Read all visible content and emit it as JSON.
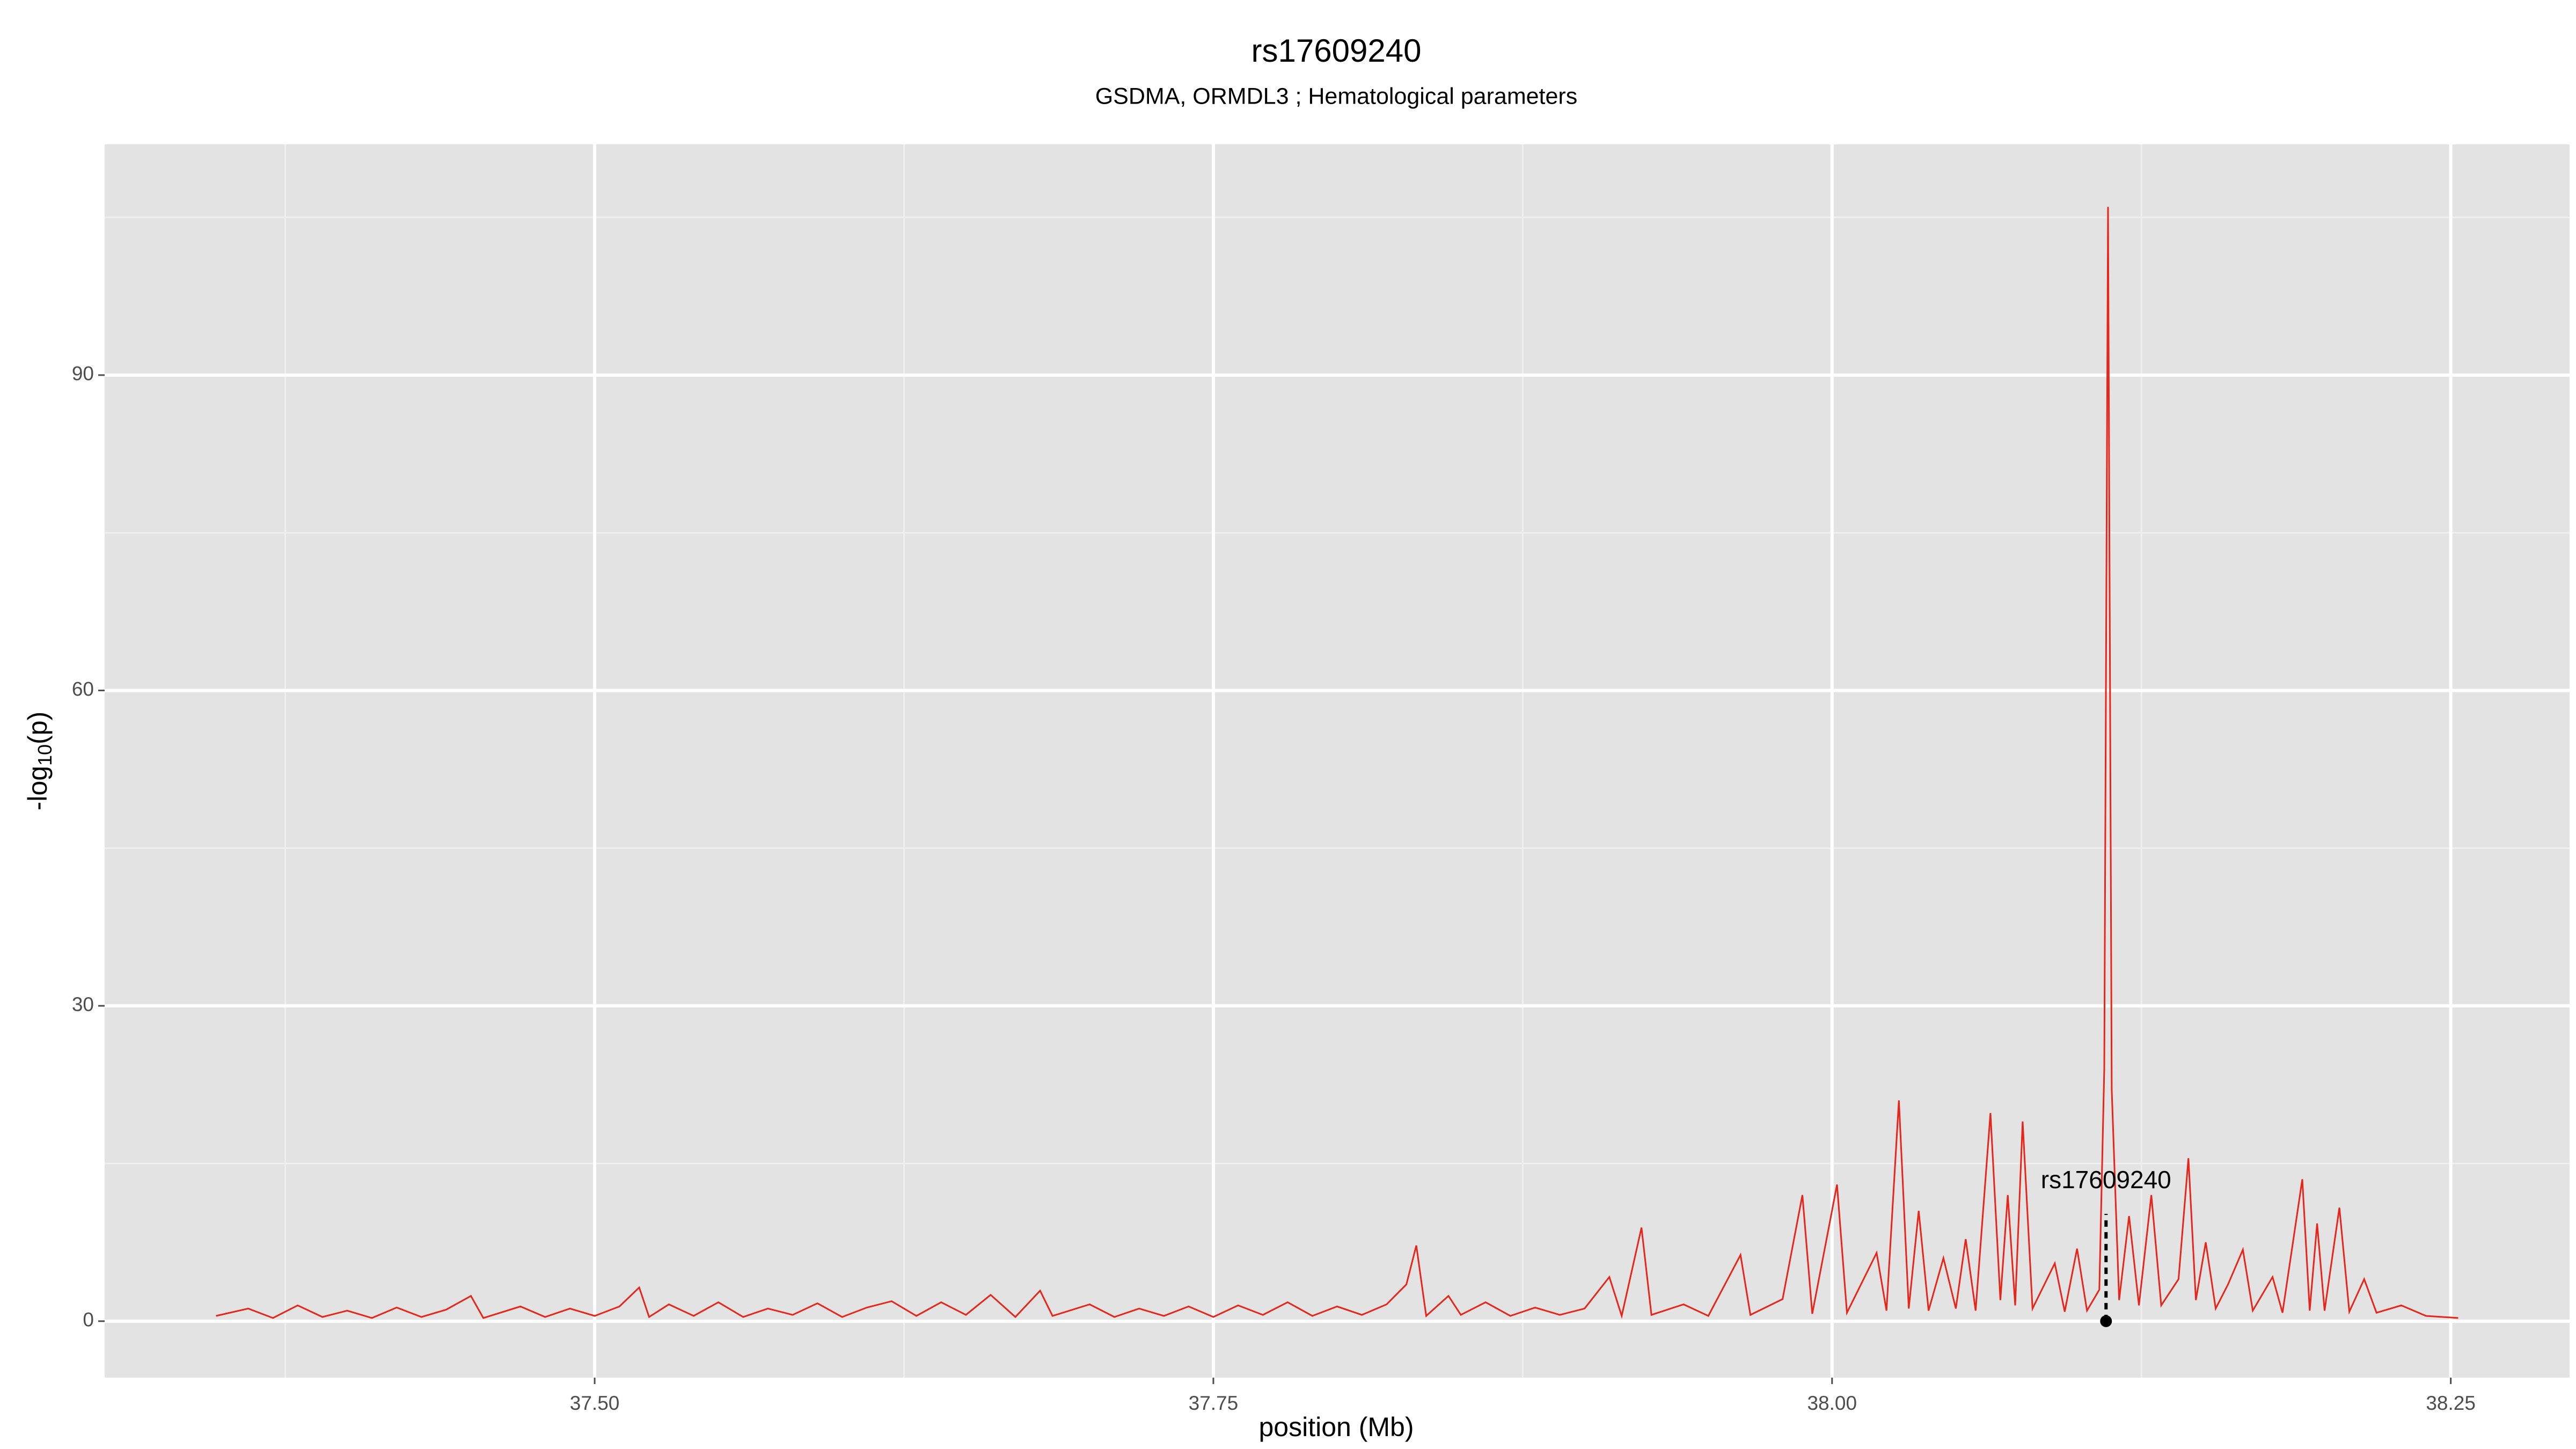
{
  "chart_data": {
    "type": "line",
    "title": "rs17609240",
    "subtitle": "GSDMA, ORMDL3 ; Hematological parameters",
    "x_label": "position (Mb)",
    "y_label": {
      "prefix": "-log",
      "sub": "10",
      "suffix": "(p)"
    },
    "xlim": [
      37.302,
      38.298
    ],
    "ylim": [
      -5.37,
      111.95
    ],
    "xticks": [
      {
        "value": 37.5,
        "label": "37.50"
      },
      {
        "value": 37.75,
        "label": "37.75"
      },
      {
        "value": 38.0,
        "label": "38.00"
      },
      {
        "value": 38.25,
        "label": "38.25"
      }
    ],
    "yticks": [
      0,
      30,
      60,
      90
    ],
    "grid": true,
    "series": [
      {
        "color": "#e8251b",
        "x": [
          37.347,
          37.36,
          37.37,
          37.38,
          37.39,
          37.4,
          37.41,
          37.42,
          37.43,
          37.44,
          37.45,
          37.455,
          37.47,
          37.48,
          37.49,
          37.5,
          37.51,
          37.518,
          37.522,
          37.53,
          37.54,
          37.55,
          37.56,
          37.57,
          37.58,
          37.59,
          37.6,
          37.61,
          37.62,
          37.63,
          37.64,
          37.65,
          37.66,
          37.67,
          37.68,
          37.685,
          37.7,
          37.71,
          37.72,
          37.73,
          37.74,
          37.75,
          37.76,
          37.77,
          37.78,
          37.79,
          37.8,
          37.81,
          37.82,
          37.828,
          37.832,
          37.836,
          37.845,
          37.85,
          37.86,
          37.87,
          37.88,
          37.89,
          37.9,
          37.91,
          37.915,
          37.923,
          37.927,
          37.94,
          37.95,
          37.963,
          37.967,
          37.98,
          37.988,
          37.992,
          38.002,
          38.006,
          38.018,
          38.022,
          38.027,
          38.031,
          38.035,
          38.039,
          38.045,
          38.05,
          38.054,
          38.058,
          38.064,
          38.068,
          38.071,
          38.074,
          38.077,
          38.081,
          38.09,
          38.094,
          38.099,
          38.103,
          38.108,
          38.11,
          38.1115,
          38.113,
          38.116,
          38.12,
          38.124,
          38.129,
          38.133,
          38.14,
          38.144,
          38.147,
          38.151,
          38.155,
          38.16,
          38.166,
          38.17,
          38.178,
          38.182,
          38.19,
          38.193,
          38.196,
          38.199,
          38.205,
          38.209,
          38.215,
          38.22,
          38.23,
          38.24,
          38.253
        ],
        "values": [
          0.5,
          1.2,
          0.3,
          1.5,
          0.4,
          1.0,
          0.3,
          1.3,
          0.4,
          1.1,
          2.4,
          0.3,
          1.4,
          0.4,
          1.2,
          0.5,
          1.4,
          3.2,
          0.4,
          1.6,
          0.5,
          1.8,
          0.4,
          1.2,
          0.6,
          1.7,
          0.4,
          1.3,
          1.9,
          0.5,
          1.8,
          0.6,
          2.5,
          0.4,
          2.9,
          0.5,
          1.6,
          0.4,
          1.2,
          0.5,
          1.4,
          0.4,
          1.5,
          0.6,
          1.8,
          0.5,
          1.4,
          0.6,
          1.6,
          3.5,
          7.2,
          0.5,
          2.4,
          0.6,
          1.8,
          0.5,
          1.3,
          0.6,
          1.2,
          4.2,
          0.5,
          8.9,
          0.6,
          1.6,
          0.5,
          6.3,
          0.6,
          2.1,
          12.0,
          0.7,
          13.0,
          0.8,
          6.5,
          1.0,
          21.0,
          1.2,
          10.5,
          1.0,
          6.0,
          1.2,
          7.8,
          1.0,
          19.8,
          2.0,
          12.0,
          1.5,
          19.0,
          1.2,
          5.5,
          0.9,
          6.9,
          1.0,
          3.0,
          24,
          106,
          22,
          2.0,
          10,
          1.5,
          12,
          1.5,
          4,
          15.5,
          2,
          7.5,
          1.2,
          3.5,
          6.8,
          1.0,
          4.2,
          0.8,
          13.5,
          1.0,
          9.3,
          1.0,
          10.8,
          0.9,
          4.0,
          0.8,
          1.5,
          0.5,
          0.3
        ]
      }
    ],
    "annotation": {
      "text": "rs17609240",
      "x": 38.1107,
      "y": 0
    }
  }
}
